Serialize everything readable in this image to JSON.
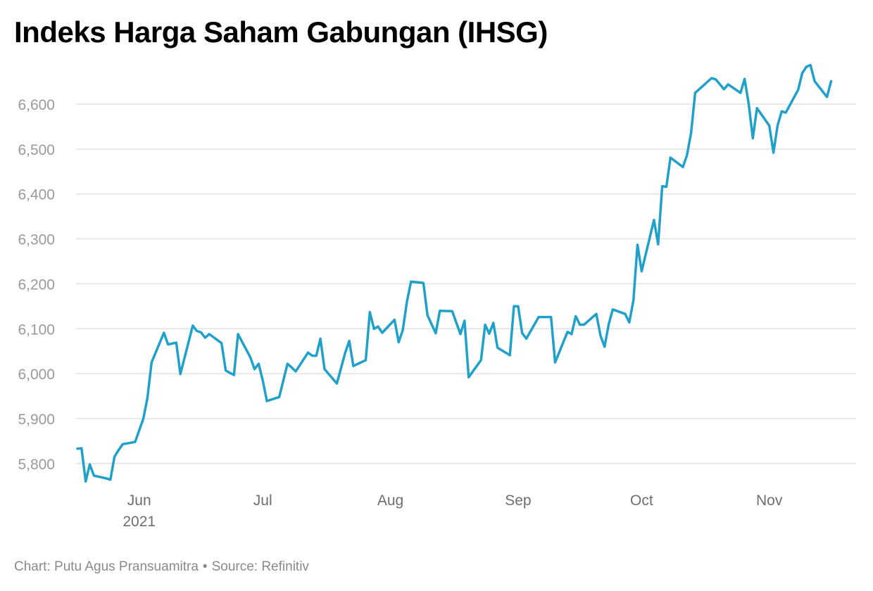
{
  "chart_data": {
    "type": "line",
    "title": "Indeks Harga Saham Gabungan (IHSG)",
    "xlabel": "",
    "ylabel": "",
    "ylim": [
      5750,
      6700
    ],
    "yticks": [
      5800,
      5900,
      6000,
      6100,
      6200,
      6300,
      6400,
      6500,
      6600
    ],
    "ytick_labels": [
      "5,800",
      "5,900",
      "6,000",
      "6,100",
      "6,200",
      "6,300",
      "6,400",
      "6,500",
      "6,600"
    ],
    "xticks": [
      {
        "date": "2021-06-01",
        "label": "Jun",
        "sublabel": "2021"
      },
      {
        "date": "2021-07-01",
        "label": "Jul"
      },
      {
        "date": "2021-08-01",
        "label": "Aug"
      },
      {
        "date": "2021-09-01",
        "label": "Sep"
      },
      {
        "date": "2021-10-01",
        "label": "Oct"
      },
      {
        "date": "2021-11-01",
        "label": "Nov"
      }
    ],
    "xlim": [
      "2021-05-17",
      "2021-11-19"
    ],
    "grid": true,
    "line_color": "#1fa1c9",
    "series": [
      {
        "name": "",
        "points": [
          [
            "2021-05-17",
            5833
          ],
          [
            "2021-05-18",
            5834
          ],
          [
            "2021-05-19",
            5760
          ],
          [
            "2021-05-20",
            5798
          ],
          [
            "2021-05-21",
            5773
          ],
          [
            "2021-05-24",
            5767
          ],
          [
            "2021-05-25",
            5764
          ],
          [
            "2021-05-26",
            5815
          ],
          [
            "2021-05-27",
            5830
          ],
          [
            "2021-05-28",
            5843
          ],
          [
            "2021-05-31",
            5848
          ],
          [
            "2021-06-02",
            5900
          ],
          [
            "2021-06-03",
            5946
          ],
          [
            "2021-06-04",
            6025
          ],
          [
            "2021-06-07",
            6091
          ],
          [
            "2021-06-08",
            6065
          ],
          [
            "2021-06-09",
            6067
          ],
          [
            "2021-06-10",
            6069
          ],
          [
            "2021-06-11",
            5999
          ],
          [
            "2021-06-14",
            6107
          ],
          [
            "2021-06-15",
            6095
          ],
          [
            "2021-06-16",
            6092
          ],
          [
            "2021-06-17",
            6080
          ],
          [
            "2021-06-18",
            6088
          ],
          [
            "2021-06-21",
            6068
          ],
          [
            "2021-06-22",
            6007
          ],
          [
            "2021-06-23",
            6002
          ],
          [
            "2021-06-24",
            5997
          ],
          [
            "2021-06-25",
            6088
          ],
          [
            "2021-06-28",
            6036
          ],
          [
            "2021-06-29",
            6010
          ],
          [
            "2021-06-30",
            6022
          ],
          [
            "2021-07-01",
            5985
          ],
          [
            "2021-07-02",
            5939
          ],
          [
            "2021-07-05",
            5948
          ],
          [
            "2021-07-06",
            5985
          ],
          [
            "2021-07-07",
            6022
          ],
          [
            "2021-07-08",
            6014
          ],
          [
            "2021-07-09",
            6005
          ],
          [
            "2021-07-12",
            6047
          ],
          [
            "2021-07-13",
            6040
          ],
          [
            "2021-07-14",
            6040
          ],
          [
            "2021-07-15",
            6078
          ],
          [
            "2021-07-16",
            6010
          ],
          [
            "2021-07-19",
            5978
          ],
          [
            "2021-07-21",
            6046
          ],
          [
            "2021-07-22",
            6073
          ],
          [
            "2021-07-23",
            6017
          ],
          [
            "2021-07-26",
            6030
          ],
          [
            "2021-07-27",
            6137
          ],
          [
            "2021-07-28",
            6100
          ],
          [
            "2021-07-29",
            6105
          ],
          [
            "2021-07-30",
            6091
          ],
          [
            "2021-08-02",
            6120
          ],
          [
            "2021-08-03",
            6070
          ],
          [
            "2021-08-04",
            6097
          ],
          [
            "2021-08-05",
            6160
          ],
          [
            "2021-08-06",
            6205
          ],
          [
            "2021-08-09",
            6202
          ],
          [
            "2021-08-10",
            6130
          ],
          [
            "2021-08-12",
            6090
          ],
          [
            "2021-08-13",
            6140
          ],
          [
            "2021-08-16",
            6139
          ],
          [
            "2021-08-18",
            6088
          ],
          [
            "2021-08-19",
            6118
          ],
          [
            "2021-08-20",
            5992
          ],
          [
            "2021-08-23",
            6030
          ],
          [
            "2021-08-24",
            6109
          ],
          [
            "2021-08-25",
            6089
          ],
          [
            "2021-08-26",
            6113
          ],
          [
            "2021-08-27",
            6058
          ],
          [
            "2021-08-30",
            6041
          ],
          [
            "2021-08-31",
            6150
          ],
          [
            "2021-09-01",
            6150
          ],
          [
            "2021-09-02",
            6090
          ],
          [
            "2021-09-03",
            6078
          ],
          [
            "2021-09-06",
            6126
          ],
          [
            "2021-09-07",
            6126
          ],
          [
            "2021-09-08",
            6126
          ],
          [
            "2021-09-09",
            6126
          ],
          [
            "2021-09-10",
            6025
          ],
          [
            "2021-09-13",
            6093
          ],
          [
            "2021-09-14",
            6088
          ],
          [
            "2021-09-15",
            6128
          ],
          [
            "2021-09-16",
            6109
          ],
          [
            "2021-09-17",
            6109
          ],
          [
            "2021-09-20",
            6133
          ],
          [
            "2021-09-21",
            6085
          ],
          [
            "2021-09-22",
            6060
          ],
          [
            "2021-09-23",
            6110
          ],
          [
            "2021-09-24",
            6143
          ],
          [
            "2021-09-27",
            6133
          ],
          [
            "2021-09-28",
            6114
          ],
          [
            "2021-09-29",
            6163
          ],
          [
            "2021-09-30",
            6287
          ],
          [
            "2021-10-01",
            6228
          ],
          [
            "2021-10-04",
            6342
          ],
          [
            "2021-10-05",
            6288
          ],
          [
            "2021-10-06",
            6417
          ],
          [
            "2021-10-07",
            6416
          ],
          [
            "2021-10-08",
            6481
          ],
          [
            "2021-10-11",
            6460
          ],
          [
            "2021-10-12",
            6486
          ],
          [
            "2021-10-13",
            6536
          ],
          [
            "2021-10-14",
            6625
          ],
          [
            "2021-10-18",
            6658
          ],
          [
            "2021-10-19",
            6655
          ],
          [
            "2021-10-21",
            6633
          ],
          [
            "2021-10-22",
            6644
          ],
          [
            "2021-10-25",
            6625
          ],
          [
            "2021-10-26",
            6656
          ],
          [
            "2021-10-27",
            6600
          ],
          [
            "2021-10-28",
            6524
          ],
          [
            "2021-10-29",
            6591
          ],
          [
            "2021-11-01",
            6552
          ],
          [
            "2021-11-02",
            6492
          ],
          [
            "2021-11-03",
            6552
          ],
          [
            "2021-11-04",
            6584
          ],
          [
            "2021-11-05",
            6581
          ],
          [
            "2021-11-08",
            6632
          ],
          [
            "2021-11-09",
            6669
          ],
          [
            "2021-11-10",
            6683
          ],
          [
            "2021-11-11",
            6687
          ],
          [
            "2021-11-12",
            6651
          ],
          [
            "2021-11-15",
            6616
          ],
          [
            "2021-11-16",
            6651
          ]
        ]
      }
    ]
  },
  "footer": {
    "credit": "Chart: Putu Agus Pransuamitra",
    "separator": "•",
    "source": "Source: Refinitiv"
  }
}
